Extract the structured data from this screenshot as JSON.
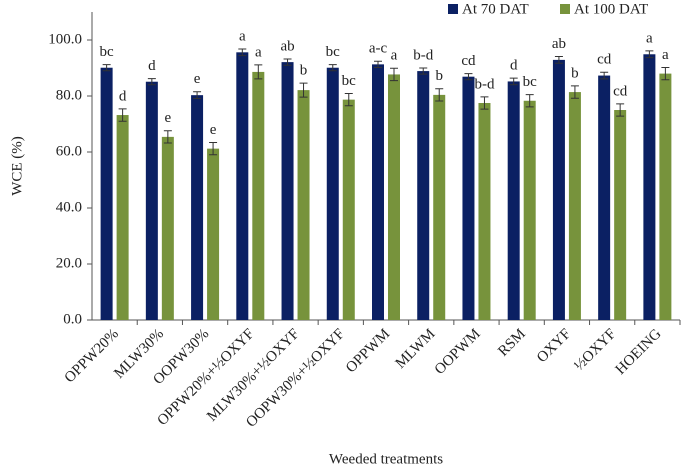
{
  "chart_data": {
    "type": "bar",
    "y_label": "WCE (%)",
    "x_label": "Weeded treatments",
    "categories": [
      "OPPW20%",
      "MLW30%",
      "OOPW30%",
      "OPPW20%+½OXYF",
      "MLW30%+½OXYF",
      "OOPW30%+½OXYF",
      "OPPWM",
      "MLWM",
      "OOPWM",
      "RSM",
      "OXYF",
      "½OXYF",
      "HOEING"
    ],
    "series": [
      {
        "name": "At 70 DAT",
        "color": "#0b2063",
        "values": [
          90.1,
          85.1,
          80.3,
          95.6,
          92.1,
          90.1,
          91.3,
          88.9,
          86.9,
          85.2,
          92.9,
          87.3,
          94.9
        ],
        "errors": [
          1.1,
          1.1,
          1.2,
          1.2,
          1.1,
          1.1,
          1.1,
          1.1,
          1.1,
          1.2,
          1.2,
          1.2,
          1.2
        ],
        "letters": [
          "bc",
          "d",
          "e",
          "a",
          "ab",
          "bc",
          "a-c",
          "b-d",
          "cd",
          "d",
          "ab",
          "cd",
          "a"
        ]
      },
      {
        "name": "At 100 DAT",
        "color": "#77933c",
        "values": [
          73.2,
          65.4,
          61.2,
          88.6,
          82.1,
          78.7,
          87.7,
          80.4,
          77.5,
          78.3,
          81.4,
          75.0,
          88.0
        ],
        "errors": [
          2.2,
          2.2,
          2.2,
          2.5,
          2.5,
          2.2,
          2.2,
          2.2,
          2.2,
          2.2,
          2.2,
          2.2,
          2.2
        ],
        "letters": [
          "d",
          "e",
          "e",
          "a",
          "b",
          "bc",
          "a",
          "b",
          "b-d",
          "bc",
          "b",
          "cd",
          "a"
        ]
      }
    ],
    "ylim": [
      0,
      110
    ],
    "yticks": [
      {
        "value": 0,
        "label": "0.0"
      },
      {
        "value": 20,
        "label": "20.0"
      },
      {
        "value": 40,
        "label": "40.0"
      },
      {
        "value": 60,
        "label": "60.0"
      },
      {
        "value": 80,
        "label": "80.0"
      },
      {
        "value": 100,
        "label": "100.0"
      }
    ],
    "legend": "top-right"
  }
}
